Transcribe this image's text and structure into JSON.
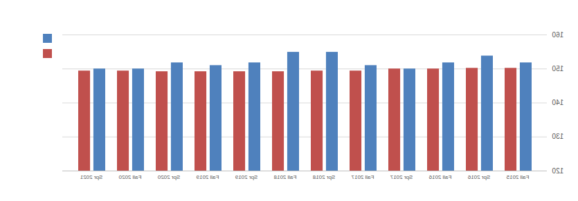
{
  "chart_data": {
    "type": "bar",
    "categories": [
      "Fall 2015",
      "Spr 2016",
      "Fall 2016",
      "Spr 2017",
      "Fall 2017",
      "Spr 2018",
      "Fall 2018",
      "Spr 2019",
      "Fall 2019",
      "Spr 2020",
      "Fall 2020",
      "Spr 2021"
    ],
    "series": [
      {
        "color": "#4f81bd",
        "values": [
          151.8,
          153.8,
          151.8,
          150,
          151,
          154.9,
          154.9,
          151.8,
          151,
          151.8,
          150,
          150
        ]
      },
      {
        "color": "#c0504d",
        "values": [
          150.2,
          150.2,
          150,
          150,
          149.4,
          149.4,
          149.2,
          149.2,
          149.2,
          149.2,
          149.4,
          149.4
        ]
      }
    ],
    "ylim": [
      120,
      160
    ],
    "yticks": [
      120,
      130,
      140,
      150,
      160
    ],
    "grid": true,
    "legend": "top-left"
  }
}
